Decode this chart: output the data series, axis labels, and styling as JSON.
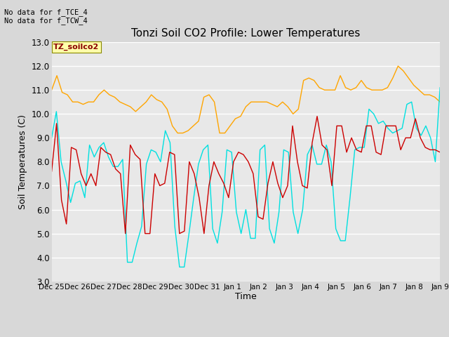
{
  "title": "Tonzi Soil CO2 Profile: Lower Temperatures",
  "xlabel": "Time",
  "ylabel": "Soil Temperatures (C)",
  "ylim": [
    3.0,
    13.0
  ],
  "yticks": [
    3.0,
    4.0,
    5.0,
    6.0,
    7.0,
    8.0,
    9.0,
    10.0,
    11.0,
    12.0,
    13.0
  ],
  "annotation_text": "No data for f_TCE_4\nNo data for f_TCW_4",
  "legend_label_text": "TZ_soilco2",
  "fig_bg_color": "#d8d8d8",
  "plot_bg_color": "#e8e8e8",
  "open_color": "#cc0000",
  "tree_color": "#ffa500",
  "tree2_color": "#00e0e0",
  "xtick_labels": [
    "Dec 25",
    "Dec 26",
    "Dec 27",
    "Dec 28",
    "Dec 29",
    "Dec 30",
    "Dec 31",
    "Jan 1",
    "Jan 2",
    "Jan 3",
    "Jan 4",
    "Jan 5",
    "Jan 6",
    "Jan 7",
    "Jan 8",
    "Jan 9"
  ],
  "open_8cm": [
    7.6,
    9.6,
    6.4,
    5.4,
    8.6,
    8.5,
    7.5,
    7.0,
    7.5,
    7.0,
    8.6,
    8.4,
    8.3,
    7.7,
    7.5,
    5.0,
    8.7,
    8.3,
    8.1,
    5.0,
    5.0,
    7.5,
    7.0,
    7.1,
    8.4,
    8.3,
    5.0,
    5.1,
    8.0,
    7.5,
    6.5,
    5.0,
    7.0,
    8.0,
    7.5,
    7.1,
    6.5,
    8.0,
    8.4,
    8.3,
    8.0,
    7.5,
    5.7,
    5.6,
    7.1,
    8.0,
    7.1,
    6.5,
    7.0,
    9.5,
    8.0,
    7.0,
    6.9,
    8.8,
    9.9,
    8.7,
    8.5,
    7.0,
    9.5,
    9.5,
    8.4,
    9.0,
    8.5,
    8.4,
    9.5,
    9.5,
    8.4,
    8.3,
    9.5,
    9.5,
    9.5,
    8.5,
    9.0,
    9.0,
    9.8,
    9.0,
    8.6,
    8.5,
    8.5,
    8.4
  ],
  "tree_8cm": [
    11.0,
    11.6,
    10.9,
    10.8,
    10.5,
    10.5,
    10.4,
    10.5,
    10.5,
    10.8,
    11.0,
    10.8,
    10.7,
    10.5,
    10.4,
    10.3,
    10.1,
    10.3,
    10.5,
    10.8,
    10.6,
    10.5,
    10.2,
    9.5,
    9.2,
    9.2,
    9.3,
    9.5,
    9.7,
    10.7,
    10.8,
    10.5,
    9.2,
    9.2,
    9.5,
    9.8,
    9.9,
    10.3,
    10.5,
    10.5,
    10.5,
    10.5,
    10.4,
    10.3,
    10.5,
    10.3,
    10.0,
    10.2,
    11.4,
    11.5,
    11.4,
    11.1,
    11.0,
    11.0,
    11.0,
    11.6,
    11.1,
    11.0,
    11.1,
    11.4,
    11.1,
    11.0,
    11.0,
    11.0,
    11.1,
    11.5,
    12.0,
    11.8,
    11.5,
    11.2,
    11.0,
    10.8,
    10.8,
    10.7,
    10.5
  ],
  "tree2_8cm": [
    9.0,
    10.1,
    8.0,
    7.2,
    6.3,
    7.1,
    7.2,
    6.5,
    8.7,
    8.2,
    8.6,
    8.8,
    8.2,
    7.8,
    7.8,
    8.1,
    3.8,
    3.8,
    4.6,
    5.3,
    7.9,
    8.5,
    8.4,
    8.0,
    9.3,
    8.8,
    5.3,
    3.6,
    3.6,
    5.0,
    6.5,
    7.9,
    8.5,
    8.7,
    5.2,
    4.6,
    5.9,
    8.5,
    8.4,
    5.9,
    5.0,
    6.0,
    4.8,
    4.8,
    8.5,
    8.7,
    5.2,
    4.6,
    5.9,
    8.5,
    8.4,
    5.9,
    5.0,
    6.0,
    8.3,
    8.7,
    7.9,
    7.9,
    8.7,
    8.0,
    5.2,
    4.7,
    4.7,
    6.5,
    8.5,
    8.6,
    8.6,
    10.2,
    10.0,
    9.6,
    9.7,
    9.4,
    9.2,
    9.3,
    9.4,
    10.4,
    10.5,
    9.4,
    9.1,
    9.5,
    9.0,
    8.0,
    11.1
  ]
}
